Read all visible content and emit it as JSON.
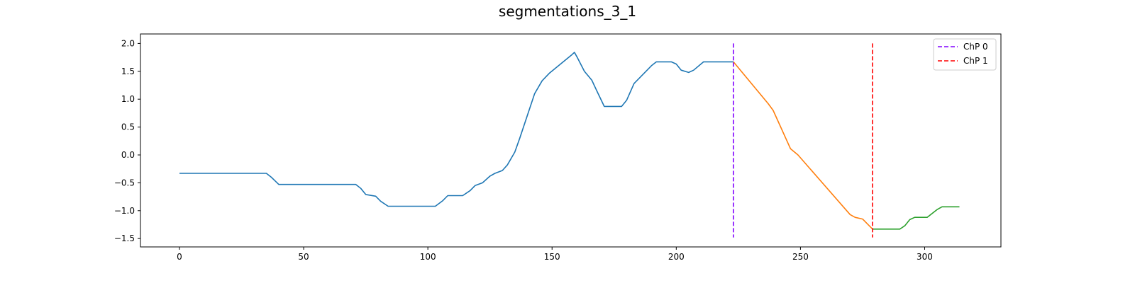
{
  "chart_data": {
    "type": "line",
    "title": "segmentations_3_1",
    "xlabel": "",
    "ylabel": "",
    "xlim": [
      -15.7,
      330.7
    ],
    "ylim": [
      -1.65,
      2.17
    ],
    "x_ticks": [
      0,
      50,
      100,
      150,
      200,
      250,
      300
    ],
    "y_ticks": [
      -1.5,
      -1.0,
      -0.5,
      0.0,
      0.5,
      1.0,
      1.5,
      2.0
    ],
    "y_tick_labels": [
      "−1.5",
      "−1.0",
      "−0.5",
      "0.0",
      "0.5",
      "1.0",
      "1.5",
      "2.0"
    ],
    "grid": false,
    "legend_position": "top-right",
    "series": [
      {
        "color": "#1f77b4",
        "x": [
          0,
          35,
          37,
          40,
          71,
          73,
          75,
          79,
          81,
          84,
          103,
          106,
          108,
          114,
          117,
          119,
          122,
          125,
          127,
          130,
          132,
          135,
          137,
          143,
          146,
          149,
          158,
          159,
          160,
          163,
          166,
          168,
          171,
          178,
          180,
          183,
          190,
          192,
          198,
          200,
          202,
          205,
          207,
          211,
          223
        ],
        "y": [
          -0.33,
          -0.33,
          -0.4,
          -0.53,
          -0.53,
          -0.6,
          -0.71,
          -0.74,
          -0.83,
          -0.92,
          -0.92,
          -0.82,
          -0.73,
          -0.73,
          -0.64,
          -0.55,
          -0.5,
          -0.38,
          -0.33,
          -0.28,
          -0.18,
          0.05,
          0.3,
          1.1,
          1.33,
          1.47,
          1.8,
          1.84,
          1.76,
          1.5,
          1.34,
          1.15,
          0.87,
          0.87,
          0.98,
          1.28,
          1.6,
          1.67,
          1.67,
          1.63,
          1.52,
          1.48,
          1.52,
          1.67,
          1.67
        ]
      },
      {
        "color": "#ff7f0e",
        "x": [
          223,
          237,
          239,
          246,
          249,
          270,
          272,
          275,
          279
        ],
        "y": [
          1.67,
          0.92,
          0.8,
          0.11,
          0.0,
          -1.07,
          -1.12,
          -1.15,
          -1.33
        ]
      },
      {
        "color": "#2ca02c",
        "x": [
          279,
          290,
          292,
          294,
          296,
          301,
          303,
          305,
          307,
          314
        ],
        "y": [
          -1.33,
          -1.33,
          -1.27,
          -1.16,
          -1.12,
          -1.12,
          -1.05,
          -0.98,
          -0.93,
          -0.93
        ]
      }
    ],
    "vlines": [
      {
        "name": "ChP 0",
        "x": 223,
        "ymin": -1.48,
        "ymax": 2.0,
        "color": "#8000ff",
        "style": "dashed"
      },
      {
        "name": "ChP 1",
        "x": 279,
        "ymin": -1.48,
        "ymax": 2.0,
        "color": "#ff0000",
        "style": "dashed"
      }
    ]
  }
}
